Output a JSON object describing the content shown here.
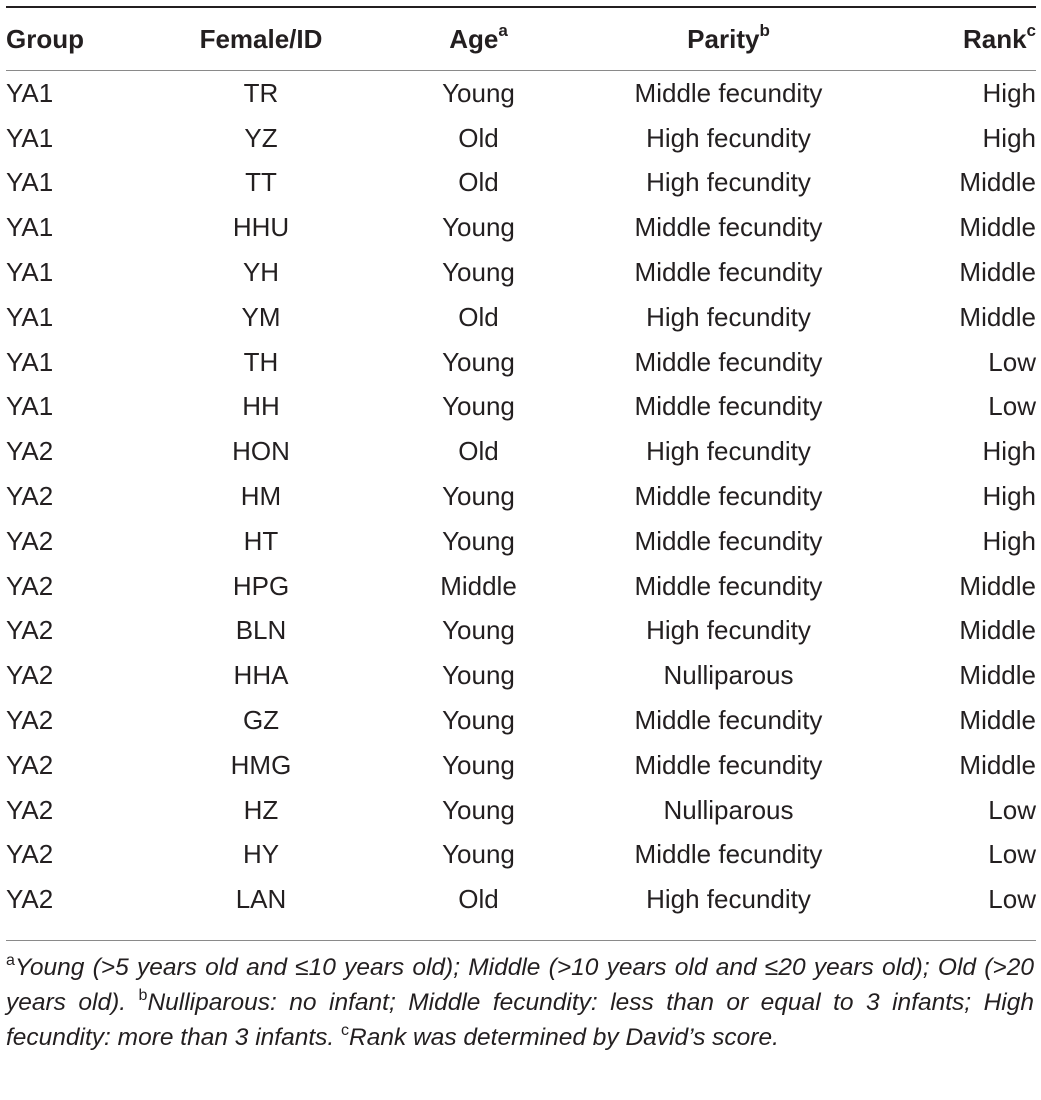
{
  "table": {
    "headers": {
      "group": "Group",
      "female_id": "Female/ID",
      "age": "Age",
      "age_mark": "a",
      "parity": "Parity",
      "parity_mark": "b",
      "rank": "Rank",
      "rank_mark": "c"
    },
    "rows": [
      {
        "group": "YA1",
        "id": "TR",
        "age": "Young",
        "parity": "Middle fecundity",
        "rank": "High"
      },
      {
        "group": "YA1",
        "id": "YZ",
        "age": "Old",
        "parity": "High fecundity",
        "rank": "High"
      },
      {
        "group": "YA1",
        "id": "TT",
        "age": "Old",
        "parity": "High fecundity",
        "rank": "Middle"
      },
      {
        "group": "YA1",
        "id": "HHU",
        "age": "Young",
        "parity": "Middle fecundity",
        "rank": "Middle"
      },
      {
        "group": "YA1",
        "id": "YH",
        "age": "Young",
        "parity": "Middle fecundity",
        "rank": "Middle"
      },
      {
        "group": "YA1",
        "id": "YM",
        "age": "Old",
        "parity": "High fecundity",
        "rank": "Middle"
      },
      {
        "group": "YA1",
        "id": "TH",
        "age": "Young",
        "parity": "Middle fecundity",
        "rank": "Low"
      },
      {
        "group": "YA1",
        "id": "HH",
        "age": "Young",
        "parity": "Middle fecundity",
        "rank": "Low"
      },
      {
        "group": "YA2",
        "id": "HON",
        "age": "Old",
        "parity": "High fecundity",
        "rank": "High"
      },
      {
        "group": "YA2",
        "id": "HM",
        "age": "Young",
        "parity": "Middle fecundity",
        "rank": "High"
      },
      {
        "group": "YA2",
        "id": "HT",
        "age": "Young",
        "parity": "Middle fecundity",
        "rank": "High"
      },
      {
        "group": "YA2",
        "id": "HPG",
        "age": "Middle",
        "parity": "Middle fecundity",
        "rank": "Middle"
      },
      {
        "group": "YA2",
        "id": "BLN",
        "age": "Young",
        "parity": "High fecundity",
        "rank": "Middle"
      },
      {
        "group": "YA2",
        "id": "HHA",
        "age": "Young",
        "parity": "Nulliparous",
        "rank": "Middle"
      },
      {
        "group": "YA2",
        "id": "GZ",
        "age": "Young",
        "parity": "Middle fecundity",
        "rank": "Middle"
      },
      {
        "group": "YA2",
        "id": "HMG",
        "age": "Young",
        "parity": "Middle fecundity",
        "rank": "Middle"
      },
      {
        "group": "YA2",
        "id": "HZ",
        "age": "Young",
        "parity": "Nulliparous",
        "rank": "Low"
      },
      {
        "group": "YA2",
        "id": "HY",
        "age": "Young",
        "parity": "Middle fecundity",
        "rank": "Low"
      },
      {
        "group": "YA2",
        "id": "LAN",
        "age": "Old",
        "parity": "High fecundity",
        "rank": "Low"
      }
    ]
  },
  "footnotes": [
    {
      "mark": "a",
      "text": "Young (>5 years old and ≤10 years old); Middle (>10 years old and ≤20 years old); Old (>20 years old)."
    },
    {
      "mark": "b",
      "text": "Nulliparous: no infant; Middle fecundity: less than or equal to 3 infants; High fecundity: more than 3 infants."
    },
    {
      "mark": "c",
      "text": "Rank was determined by David’s score."
    }
  ]
}
